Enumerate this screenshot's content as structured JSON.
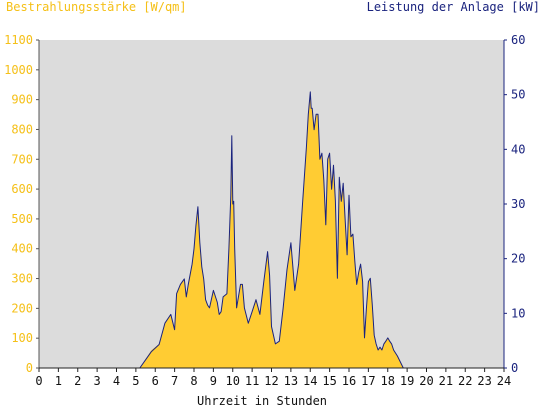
{
  "chart_data": {
    "type": "area",
    "title_left": "Bestrahlungsstärke [W/qm]",
    "title_right": "Leistung der Anlage [kW]",
    "xlabel": "Uhrzeit in Stunden",
    "x_ticks": [
      "0",
      "1",
      "2",
      "3",
      "4",
      "5",
      "6",
      "7",
      "8",
      "9",
      "10",
      "11",
      "12",
      "13",
      "14",
      "15",
      "16",
      "17",
      "18",
      "19",
      "20",
      "21",
      "22",
      "23",
      "24"
    ],
    "y_left_ticks": [
      "0",
      "100",
      "200",
      "300",
      "400",
      "500",
      "600",
      "700",
      "800",
      "900",
      "1000",
      "1100"
    ],
    "y_right_ticks": [
      "0",
      "10",
      "20",
      "30",
      "40",
      "50",
      "60"
    ],
    "xlim": [
      0,
      24
    ],
    "ylim_left": [
      0,
      1100
    ],
    "ylim_right": [
      0,
      60
    ],
    "grid": false,
    "colors": {
      "background": "#ffffff",
      "plot_area": "#dcdcdc",
      "irradiance": "#ffcc33",
      "irradiance_axis": "#f5c018",
      "power": "#1a237e"
    },
    "series": [
      {
        "axis": "left",
        "style": "filled-area",
        "x": [
          0,
          5.2,
          5.5,
          5.8,
          6.2,
          6.5,
          6.8,
          7,
          7.1,
          7.3,
          7.5,
          7.6,
          7.7,
          7.9,
          8,
          8.1,
          8.2,
          8.3,
          8.4,
          8.5,
          8.6,
          8.7,
          8.8,
          9,
          9.2,
          9.3,
          9.4,
          9.5,
          9.7,
          9.8,
          9.9,
          9.95,
          10,
          10.05,
          10.1,
          10.2,
          10.4,
          10.5,
          10.6,
          10.8,
          11,
          11.2,
          11.4,
          11.6,
          11.8,
          11.9,
          12,
          12.2,
          12.4,
          12.6,
          12.8,
          13,
          13.2,
          13.4,
          13.6,
          13.8,
          13.9,
          14,
          14.05,
          14.1,
          14.2,
          14.3,
          14.4,
          14.5,
          14.6,
          14.7,
          14.8,
          14.9,
          15,
          15.1,
          15.2,
          15.3,
          15.4,
          15.5,
          15.6,
          15.7,
          15.8,
          15.9,
          16,
          16.1,
          16.2,
          16.3,
          16.4,
          16.5,
          16.6,
          16.7,
          16.8,
          16.9,
          17,
          17.1,
          17.2,
          17.3,
          17.4,
          17.5,
          17.6,
          17.7,
          17.8,
          17.9,
          18,
          18.1,
          18.2,
          18.3,
          18.5,
          18.8,
          19,
          19.3,
          19.5,
          19.8,
          20,
          20.2,
          20.5,
          24
        ],
        "values": [
          0,
          0,
          30,
          60,
          80,
          150,
          180,
          130,
          250,
          280,
          300,
          240,
          280,
          350,
          400,
          480,
          540,
          420,
          340,
          300,
          230,
          210,
          200,
          260,
          220,
          180,
          190,
          240,
          250,
          400,
          580,
          750,
          550,
          560,
          400,
          200,
          280,
          280,
          200,
          150,
          190,
          230,
          180,
          290,
          390,
          310,
          140,
          80,
          90,
          200,
          330,
          420,
          260,
          350,
          550,
          740,
          850,
          930,
          870,
          870,
          800,
          850,
          850,
          700,
          720,
          630,
          480,
          700,
          720,
          600,
          680,
          560,
          300,
          640,
          560,
          620,
          500,
          380,
          580,
          440,
          450,
          360,
          280,
          320,
          350,
          290,
          100,
          200,
          290,
          300,
          210,
          110,
          80,
          60,
          70,
          60,
          80,
          90,
          100,
          90,
          80,
          60,
          40,
          0,
          0,
          0,
          0,
          0,
          0,
          0,
          0,
          0
        ]
      },
      {
        "axis": "right",
        "style": "line",
        "x": [
          0,
          5.2,
          5.5,
          5.8,
          6.2,
          6.5,
          6.8,
          7,
          7.1,
          7.3,
          7.5,
          7.6,
          7.7,
          7.9,
          8,
          8.1,
          8.2,
          8.3,
          8.4,
          8.5,
          8.6,
          8.7,
          8.8,
          9,
          9.2,
          9.3,
          9.4,
          9.5,
          9.7,
          9.8,
          9.9,
          9.95,
          10,
          10.05,
          10.1,
          10.2,
          10.4,
          10.5,
          10.6,
          10.8,
          11,
          11.2,
          11.4,
          11.6,
          11.8,
          11.9,
          12,
          12.2,
          12.4,
          12.6,
          12.8,
          13,
          13.2,
          13.4,
          13.6,
          13.8,
          13.9,
          14,
          14.05,
          14.1,
          14.2,
          14.3,
          14.4,
          14.5,
          14.6,
          14.7,
          14.8,
          14.9,
          15,
          15.1,
          15.2,
          15.3,
          15.4,
          15.5,
          15.6,
          15.7,
          15.8,
          15.9,
          16,
          16.1,
          16.2,
          16.3,
          16.4,
          16.5,
          16.6,
          16.7,
          16.8,
          16.9,
          17,
          17.1,
          17.2,
          17.3,
          17.4,
          17.5,
          17.6,
          17.7,
          17.8,
          17.9,
          18,
          18.1,
          18.2,
          18.3,
          18.5,
          18.8,
          19,
          19.3,
          19.5,
          19.8,
          20,
          20.2,
          20.5,
          24
        ],
        "values": [
          0,
          0,
          1.5,
          3,
          4.3,
          8.2,
          9.8,
          7,
          13.6,
          15.3,
          16.3,
          13,
          15.2,
          19,
          21.8,
          26,
          29.5,
          23,
          18.5,
          16.3,
          12.5,
          11.5,
          11,
          14.2,
          12,
          9.8,
          10.3,
          13,
          13.6,
          21.8,
          31.5,
          42.5,
          30,
          30.5,
          21.8,
          11,
          15.3,
          15.3,
          11,
          8.2,
          10.3,
          12.5,
          9.8,
          15.8,
          21.3,
          16.9,
          7.6,
          4.4,
          4.9,
          10.9,
          18,
          22.9,
          14.2,
          19,
          30,
          40.4,
          46.4,
          50.5,
          47.5,
          47.5,
          43.6,
          46.4,
          46.4,
          38.2,
          39.3,
          34.4,
          26.2,
          38.2,
          39.3,
          32.7,
          37.1,
          30.5,
          16.4,
          34.9,
          30.5,
          33.8,
          27.3,
          20.7,
          31.6,
          24,
          24.5,
          19.6,
          15.3,
          17.5,
          19,
          15.8,
          5.5,
          10.9,
          15.8,
          16.4,
          11.5,
          6,
          4.4,
          3.3,
          3.8,
          3.3,
          4.4,
          4.9,
          5.5,
          4.9,
          4.4,
          3.3,
          2.2,
          0,
          0,
          0,
          0,
          0,
          0,
          0,
          0,
          0
        ]
      }
    ]
  }
}
